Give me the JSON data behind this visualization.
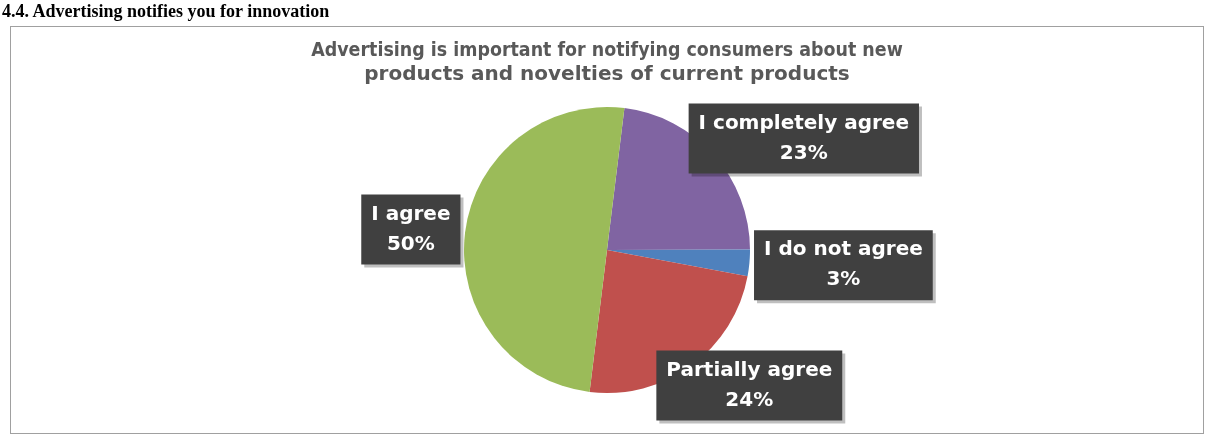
{
  "chart_data": {
    "type": "pie",
    "title": "Advertising is important for notifying consumers about new products and novelties of current products",
    "annotations": [
      "4.4. Advertising notifies you for innovation"
    ],
    "categories": [
      "I completely agree",
      "I do not agree",
      "Partially agree",
      "I agree"
    ],
    "values": [
      23,
      3,
      24,
      50
    ],
    "value_labels": [
      "23%",
      "3%",
      "24%",
      "50%"
    ],
    "colors": [
      "#8064a2",
      "#4f81bd",
      "#c0504d",
      "#9bbb59"
    ],
    "legend": false
  }
}
